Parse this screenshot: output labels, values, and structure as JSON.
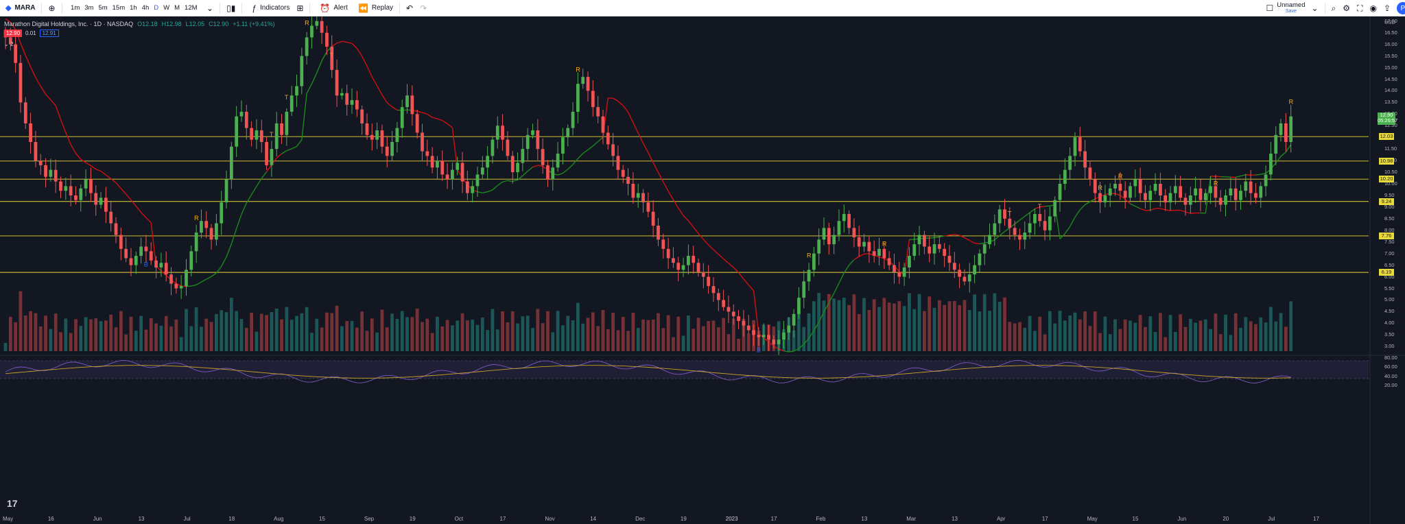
{
  "toolbar": {
    "symbol": "MARA",
    "timeframes": [
      "1m",
      "3m",
      "5m",
      "15m",
      "1h",
      "4h",
      "D",
      "W",
      "M",
      "12M"
    ],
    "active_timeframe": "D",
    "indicators_label": "Indicators",
    "alert_label": "Alert",
    "replay_label": "Replay",
    "layout_name": "Unnamed",
    "layout_status": "Save",
    "avatar_initial": "P"
  },
  "legend": {
    "title": "Marathon Digital Holdings, Inc. · 1D · NASDAQ",
    "open": "O12.18",
    "high": "H12.98",
    "low": "L12.05",
    "close": "C12.90",
    "change": "+1.11 (+9.41%)",
    "bid": "12.90",
    "spread": "0.01",
    "ask": "12.91",
    "indicator_count": "2"
  },
  "price_axis": {
    "ticks": [
      "17.00",
      "16.50",
      "16.00",
      "15.50",
      "15.00",
      "14.50",
      "14.00",
      "13.50",
      "13.00",
      "12.50",
      "11.50",
      "11.00",
      "10.50",
      "10.00",
      "9.50",
      "9.00",
      "8.50",
      "8.00",
      "7.50",
      "7.00",
      "6.50",
      "6.00",
      "5.50",
      "5.00",
      "4.50",
      "4.00",
      "3.50",
      "3.00"
    ],
    "top_partial": "USD",
    "current_price": "12.90",
    "countdown": "05:26:57",
    "levels": [
      "12.03",
      "10.98",
      "10.20",
      "9.24",
      "7.76",
      "6.19"
    ]
  },
  "rsi_axis": {
    "ticks": [
      "80.00",
      "60.00",
      "40.00",
      "20.00"
    ]
  },
  "time_axis": {
    "labels": [
      "May",
      "16",
      "Jun",
      "13",
      "Jul",
      "18",
      "Aug",
      "15",
      "Sep",
      "19",
      "Oct",
      "17",
      "Nov",
      "14",
      "Dec",
      "19",
      "2023",
      "17",
      "Feb",
      "13",
      "Mar",
      "13",
      "Apr",
      "17",
      "May",
      "15",
      "Jun",
      "20",
      "Jul",
      "17"
    ]
  },
  "signals": {
    "labels": [
      "R",
      "T",
      "T",
      "T",
      "R",
      "R",
      "B",
      "R",
      "T",
      "T",
      "R",
      "R",
      "R",
      "R",
      "R",
      "B"
    ]
  },
  "colors": {
    "bg": "#131722",
    "up": "#4caf50",
    "down": "#f05454",
    "neutral": "#1e6fd9",
    "level": "#e8d93a",
    "trail_up": "#1b8a1b",
    "trail_down": "#d01010",
    "rsi": "#7e57c2",
    "rsi_ma": "#c9a227"
  },
  "chart_data": {
    "type": "candlestick",
    "symbol": "MARA",
    "timeframe": "1D",
    "ylim": [
      2.8,
      17.2
    ],
    "horizontal_levels": [
      12.03,
      10.98,
      10.2,
      9.24,
      7.76,
      6.19
    ],
    "closes": [
      16.3,
      16.0,
      15.2,
      13.5,
      12.6,
      11.8,
      11.0,
      10.8,
      10.3,
      10.6,
      10.1,
      9.7,
      9.9,
      9.5,
      9.3,
      9.8,
      10.2,
      9.6,
      9.1,
      9.4,
      8.8,
      8.3,
      7.8,
      7.2,
      6.8,
      6.5,
      6.9,
      7.3,
      7.1,
      6.7,
      6.4,
      6.6,
      6.1,
      5.7,
      5.5,
      5.6,
      6.3,
      7.1,
      7.9,
      8.4,
      8.1,
      7.6,
      8.3,
      9.2,
      10.2,
      11.6,
      12.9,
      13.1,
      12.4,
      11.9,
      12.3,
      11.8,
      10.8,
      11.5,
      12.6,
      12.1,
      13.1,
      13.8,
      14.2,
      15.5,
      16.3,
      16.8,
      17.0,
      16.5,
      15.9,
      14.9,
      13.8,
      13.9,
      13.4,
      13.6,
      13.2,
      12.6,
      12.1,
      11.9,
      12.3,
      11.6,
      11.2,
      11.8,
      12.4,
      13.3,
      13.8,
      13.0,
      12.2,
      11.4,
      11.2,
      10.7,
      11.0,
      10.4,
      10.2,
      10.6,
      10.9,
      10.1,
      9.6,
      9.9,
      10.4,
      10.7,
      11.2,
      11.9,
      12.5,
      11.9,
      11.2,
      10.5,
      10.9,
      11.5,
      12.1,
      12.3,
      11.5,
      10.8,
      10.2,
      10.7,
      11.3,
      12.0,
      12.4,
      13.1,
      14.3,
      14.6,
      14.0,
      13.3,
      12.9,
      12.2,
      11.7,
      11.2,
      10.6,
      10.3,
      10.0,
      9.4,
      9.6,
      9.2,
      8.8,
      8.2,
      7.6,
      7.2,
      6.8,
      6.6,
      6.3,
      6.5,
      6.9,
      6.6,
      6.2,
      6.0,
      5.6,
      5.3,
      5.0,
      4.7,
      4.5,
      4.3,
      4.1,
      3.9,
      3.7,
      3.5,
      3.4,
      3.5,
      3.3,
      3.1,
      3.3,
      3.6,
      3.9,
      4.4,
      5.1,
      5.8,
      6.3,
      7.0,
      7.6,
      8.1,
      7.4,
      7.8,
      8.4,
      8.7,
      8.1,
      7.7,
      7.3,
      7.5,
      7.1,
      6.9,
      7.2,
      6.8,
      6.5,
      6.2,
      6.0,
      6.4,
      6.9,
      7.4,
      7.8,
      7.3,
      7.0,
      7.4,
      7.2,
      6.9,
      6.6,
      6.3,
      6.0,
      5.8,
      6.1,
      6.5,
      7.0,
      7.4,
      7.8,
      8.3,
      8.9,
      8.5,
      8.1,
      7.8,
      7.6,
      7.9,
      8.3,
      8.7,
      8.4,
      8.0,
      8.6,
      9.3,
      10.0,
      10.6,
      11.2,
      12.0,
      11.4,
      10.7,
      10.2,
      9.6,
      9.2,
      9.5,
      9.8,
      10.0,
      9.7,
      9.4,
      9.9,
      10.2,
      9.6,
      9.3,
      9.7,
      10.0,
      9.5,
      9.2,
      9.6,
      9.9,
      9.4,
      9.1,
      9.5,
      9.8,
      9.3,
      9.6,
      9.9,
      9.4,
      9.1,
      9.5,
      9.8,
      9.3,
      9.7,
      10.1,
      9.6,
      9.4,
      9.9,
      10.4,
      11.3,
      12.1,
      12.6,
      11.8,
      12.9
    ]
  }
}
